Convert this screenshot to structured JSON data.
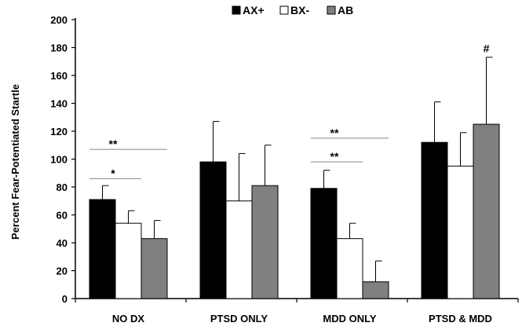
{
  "chart_data": {
    "type": "bar",
    "title": "",
    "xlabel": "",
    "ylabel": "Percent Fear-Potentiated Startle",
    "ylim": [
      0,
      200
    ],
    "yticks": [
      0,
      20,
      40,
      60,
      80,
      100,
      120,
      140,
      160,
      180,
      200
    ],
    "grid": false,
    "legend_position": "top-center",
    "categories": [
      "NO DX",
      "PTSD ONLY",
      "MDD ONLY",
      "PTSD & MDD"
    ],
    "series": [
      {
        "name": "AX+",
        "color": "#000000",
        "values": [
          71,
          98,
          79,
          112
        ],
        "errors": [
          10,
          29,
          13,
          29
        ]
      },
      {
        "name": "BX-",
        "color": "#ffffff",
        "values": [
          54,
          70,
          43,
          95
        ],
        "errors": [
          9,
          34,
          11,
          24
        ]
      },
      {
        "name": "AB",
        "color": "#808080",
        "values": [
          43,
          81,
          12,
          125
        ],
        "errors": [
          13,
          29,
          15,
          48
        ]
      }
    ],
    "annotations": [
      {
        "text": "**",
        "category": 0,
        "from_series": 0,
        "to_series": 2,
        "y": 107
      },
      {
        "text": "*",
        "category": 0,
        "from_series": 0,
        "to_series": 1,
        "y": 86
      },
      {
        "text": "**",
        "category": 2,
        "from_series": 0,
        "to_series": 2,
        "y": 115
      },
      {
        "text": "**",
        "category": 2,
        "from_series": 0,
        "to_series": 1,
        "y": 98
      },
      {
        "text": "#",
        "category": 3,
        "series": 2,
        "y": 180
      }
    ]
  }
}
